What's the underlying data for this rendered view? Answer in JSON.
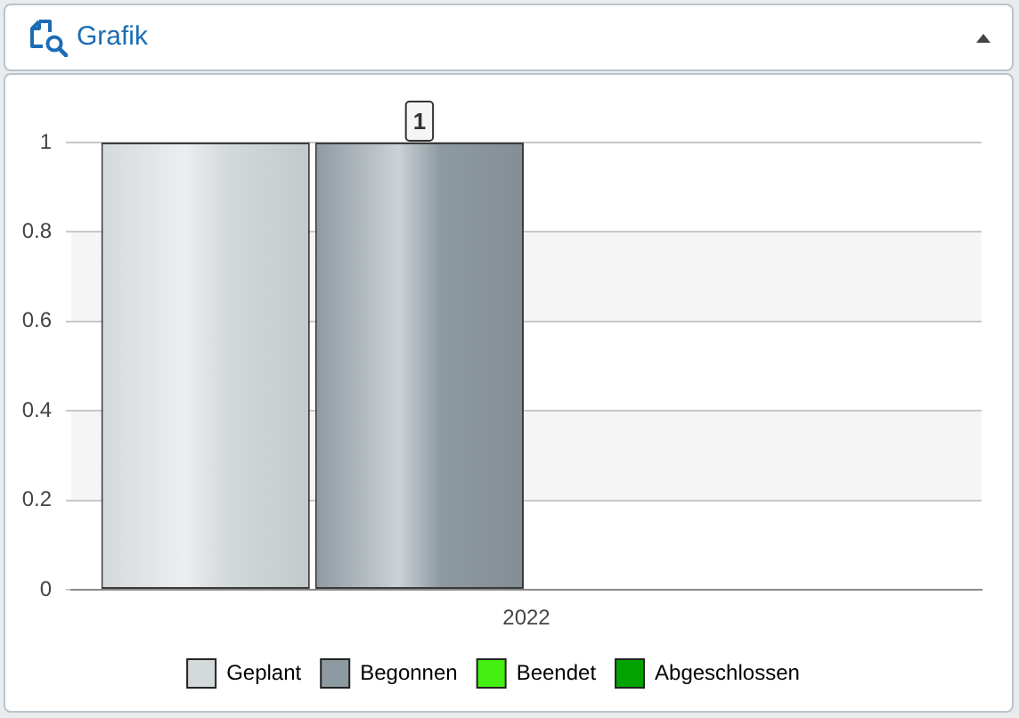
{
  "chart_data": {
    "type": "bar",
    "title": "Grafik",
    "categories": [
      "2022"
    ],
    "series": [
      {
        "name": "Geplant",
        "color": "#d4d9dc",
        "values": [
          1
        ]
      },
      {
        "name": "Begonnen",
        "color": "#8e9aa2",
        "values": [
          1
        ],
        "value_labels": [
          "1"
        ]
      },
      {
        "name": "Beendet",
        "color": "#44f011",
        "values": [
          0
        ]
      },
      {
        "name": "Abgeschlossen",
        "color": "#00a300",
        "values": [
          0
        ]
      }
    ],
    "ylim": [
      0,
      1
    ],
    "yticks": [
      0,
      0.2,
      0.4,
      0.6,
      0.8,
      1
    ],
    "grid": "y",
    "bands": [
      {
        "axis": "y",
        "from": 0.2,
        "to": 0.4,
        "color": "#f5f5f5"
      },
      {
        "axis": "y",
        "from": 0.6,
        "to": 0.8,
        "color": "#f5f5f5"
      }
    ],
    "legend": "bottom"
  }
}
